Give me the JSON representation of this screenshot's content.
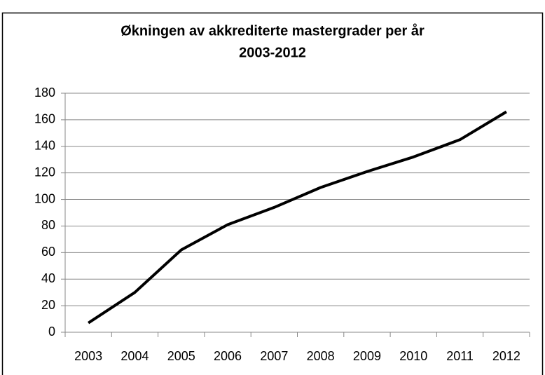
{
  "chart_data": {
    "type": "line",
    "title": "Økningen av akkrediterte mastergrader per år",
    "subtitle": "2003-2012",
    "categories": [
      "2003",
      "2004",
      "2005",
      "2006",
      "2007",
      "2008",
      "2009",
      "2010",
      "2011",
      "2012"
    ],
    "values": [
      7,
      30,
      62,
      81,
      94,
      109,
      121,
      132,
      145,
      166
    ],
    "color": "#000000",
    "ylim": [
      0,
      180
    ],
    "yticks": [
      0,
      20,
      40,
      60,
      80,
      100,
      120,
      140,
      160,
      180
    ],
    "grid": true
  }
}
